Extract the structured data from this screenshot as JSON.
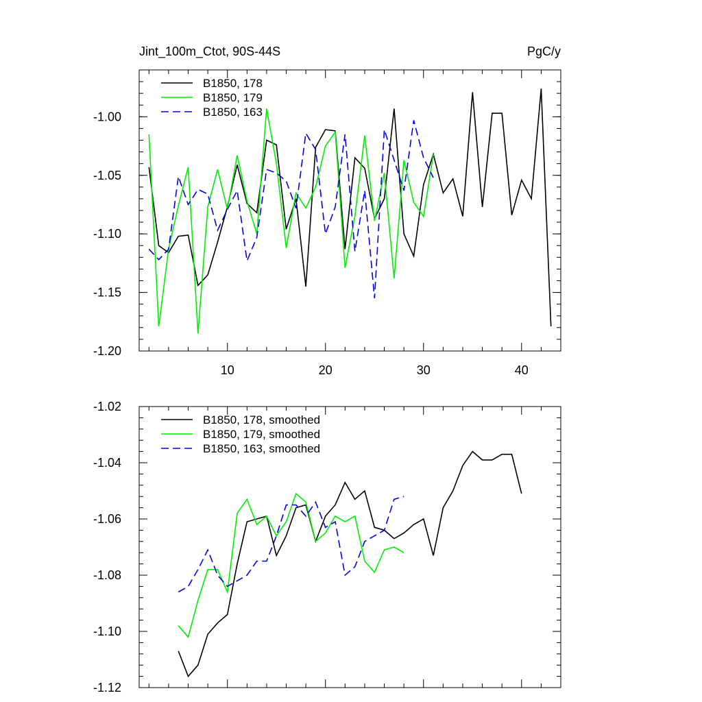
{
  "chart_data": [
    {
      "type": "line",
      "title": "Jint_100m_Ctot, 90S-44S",
      "units": "PgC/y",
      "xlim": [
        1,
        44
      ],
      "ylim": [
        -1.2,
        -0.96
      ],
      "xticks": [
        10,
        20,
        30,
        40
      ],
      "yticks": [
        -1.2,
        -1.15,
        -1.1,
        -1.05,
        -1.0
      ],
      "ytick_labels": [
        "-1.20",
        "-1.15",
        "-1.10",
        "-1.05",
        "-1.00"
      ],
      "legend_position": "top-left",
      "series": [
        {
          "name": "B1850, 178",
          "color": "#000000",
          "dash": "solid",
          "x": [
            2,
            3,
            4,
            5,
            6,
            7,
            8,
            9,
            10,
            11,
            12,
            13,
            14,
            15,
            16,
            17,
            18,
            19,
            20,
            21,
            22,
            23,
            24,
            25,
            26,
            27,
            28,
            29,
            30,
            31,
            32,
            33,
            34,
            35,
            36,
            37,
            38,
            39,
            40,
            41,
            42,
            43
          ],
          "y": [
            -1.043,
            -1.11,
            -1.116,
            -1.102,
            -1.101,
            -1.144,
            -1.135,
            -1.107,
            -1.077,
            -1.041,
            -1.074,
            -1.082,
            -1.02,
            -1.024,
            -1.096,
            -1.07,
            -1.145,
            -1.026,
            -1.011,
            -1.012,
            -1.113,
            -1.035,
            -1.044,
            -1.087,
            -1.07,
            -0.993,
            -1.1,
            -1.119,
            -1.058,
            -1.032,
            -1.065,
            -1.053,
            -1.085,
            -0.979,
            -1.077,
            -0.997,
            -0.997,
            -1.084,
            -1.054,
            -1.07,
            -0.976,
            -1.179
          ]
        },
        {
          "name": "B1850, 179",
          "color": "#00ee00",
          "dash": "solid",
          "x": [
            2,
            3,
            4,
            5,
            6,
            7,
            8,
            9,
            10,
            11,
            12,
            13,
            14,
            15,
            16,
            17,
            18,
            19,
            20,
            21,
            22,
            23,
            24,
            25,
            26,
            27,
            28,
            29,
            30,
            31
          ],
          "y": [
            -1.015,
            -1.179,
            -1.113,
            -1.076,
            -1.043,
            -1.185,
            -1.077,
            -1.045,
            -1.079,
            -1.033,
            -1.072,
            -1.1,
            -0.993,
            -1.04,
            -1.112,
            -1.065,
            -1.078,
            -1.06,
            -1.025,
            -1.013,
            -1.129,
            -1.085,
            -1.016,
            -1.089,
            -1.048,
            -1.138,
            -1.037,
            -1.073,
            -1.085,
            -1.032
          ]
        },
        {
          "name": "B1850, 163",
          "color": "#0000e6",
          "dash": "dashed",
          "x": [
            2,
            3,
            4,
            5,
            6,
            7,
            8,
            9,
            10,
            11,
            12,
            13,
            14,
            15,
            16,
            17,
            18,
            19,
            20,
            21,
            22,
            23,
            24,
            25,
            26,
            27,
            28,
            29,
            30,
            31
          ],
          "y": [
            -1.113,
            -1.122,
            -1.113,
            -1.051,
            -1.075,
            -1.062,
            -1.066,
            -1.097,
            -1.079,
            -1.063,
            -1.123,
            -1.103,
            -1.045,
            -1.048,
            -1.055,
            -1.078,
            -1.014,
            -1.028,
            -1.1,
            -1.077,
            -1.015,
            -1.115,
            -1.063,
            -1.155,
            -1.011,
            -1.037,
            -1.063,
            -1.003,
            -1.035,
            -1.052
          ]
        }
      ]
    },
    {
      "type": "line",
      "xlim": [
        1,
        44
      ],
      "ylim": [
        -1.12,
        -1.02
      ],
      "xticks": [
        10,
        20,
        30,
        40
      ],
      "yticks": [
        -1.12,
        -1.1,
        -1.08,
        -1.06,
        -1.04,
        -1.02
      ],
      "ytick_labels": [
        "-1.12",
        "-1.10",
        "-1.08",
        "-1.06",
        "-1.04",
        "-1.02"
      ],
      "legend_position": "top-left",
      "series": [
        {
          "name": "B1850, 178, smoothed",
          "color": "#000000",
          "dash": "solid",
          "x": [
            5,
            6,
            7,
            8,
            9,
            10,
            11,
            12,
            13,
            14,
            15,
            16,
            17,
            18,
            19,
            20,
            21,
            22,
            23,
            24,
            25,
            26,
            27,
            28,
            29,
            30,
            31,
            32,
            33,
            34,
            35,
            36,
            37,
            38,
            39,
            40
          ],
          "y": [
            -1.107,
            -1.116,
            -1.112,
            -1.101,
            -1.097,
            -1.094,
            -1.076,
            -1.061,
            -1.06,
            -1.059,
            -1.073,
            -1.066,
            -1.056,
            -1.055,
            -1.068,
            -1.059,
            -1.055,
            -1.047,
            -1.053,
            -1.05,
            -1.063,
            -1.064,
            -1.067,
            -1.065,
            -1.062,
            -1.06,
            -1.073,
            -1.056,
            -1.05,
            -1.041,
            -1.036,
            -1.039,
            -1.039,
            -1.037,
            -1.037,
            -1.051
          ]
        },
        {
          "name": "B1850, 179, smoothed",
          "color": "#00ee00",
          "dash": "solid",
          "x": [
            5,
            6,
            7,
            8,
            9,
            10,
            11,
            12,
            13,
            14,
            15,
            16,
            17,
            18,
            19,
            20,
            21,
            22,
            23,
            24,
            25,
            26,
            27,
            28
          ],
          "y": [
            -1.098,
            -1.102,
            -1.089,
            -1.078,
            -1.078,
            -1.086,
            -1.058,
            -1.053,
            -1.062,
            -1.059,
            -1.066,
            -1.061,
            -1.051,
            -1.054,
            -1.068,
            -1.065,
            -1.059,
            -1.061,
            -1.059,
            -1.075,
            -1.079,
            -1.071,
            -1.07,
            -1.072
          ]
        },
        {
          "name": "B1850, 163, smoothed",
          "color": "#0000e6",
          "dash": "dashed",
          "x": [
            5,
            6,
            7,
            8,
            9,
            10,
            11,
            12,
            13,
            14,
            15,
            16,
            17,
            18,
            19,
            20,
            21,
            22,
            23,
            24,
            25,
            26,
            27,
            28
          ],
          "y": [
            -1.086,
            -1.084,
            -1.078,
            -1.071,
            -1.08,
            -1.084,
            -1.082,
            -1.08,
            -1.075,
            -1.075,
            -1.066,
            -1.055,
            -1.055,
            -1.059,
            -1.054,
            -1.063,
            -1.061,
            -1.08,
            -1.077,
            -1.068,
            -1.066,
            -1.064,
            -1.053,
            -1.052
          ]
        }
      ]
    }
  ]
}
